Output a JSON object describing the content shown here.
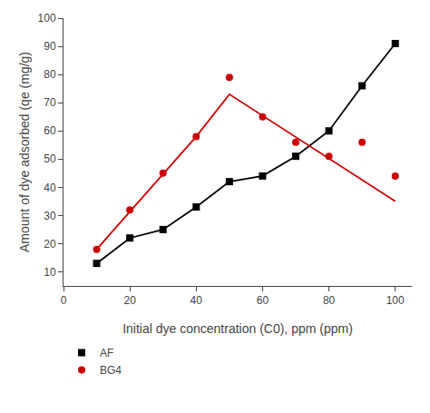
{
  "chart_data": {
    "type": "line",
    "xlabel": "Initial dye concentration (C0), ppm (ppm)",
    "ylabel": "Amount of dye adsorbed (qe (mg/g)",
    "xlim": [
      0,
      105
    ],
    "ylim": [
      5,
      100
    ],
    "xticks": [
      0,
      20,
      40,
      60,
      80,
      100
    ],
    "yticks": [
      10,
      20,
      30,
      40,
      50,
      60,
      70,
      80,
      90,
      100
    ],
    "grid": false,
    "legend": "bottom left",
    "series": [
      {
        "type": "line",
        "color": "#000000",
        "line_style": "solid",
        "x": [
          10,
          20,
          30,
          40,
          50,
          60,
          70,
          80,
          90,
          100
        ],
        "values": [
          13,
          22,
          25,
          33,
          42,
          44,
          51,
          60,
          76,
          91
        ]
      },
      {
        "type": "line",
        "color": "#cc0000",
        "line_style": "solid",
        "x": [
          10,
          40,
          50,
          100
        ],
        "values": [
          18,
          58,
          73,
          35
        ]
      },
      {
        "name": "AF",
        "type": "scatter",
        "color": "#000000",
        "marker": "square",
        "x": [
          10,
          20,
          30,
          40,
          50,
          60,
          70,
          80,
          90,
          100
        ],
        "values": [
          13,
          22,
          25,
          33,
          42,
          44,
          51,
          60,
          76,
          91
        ]
      },
      {
        "name": "BG4",
        "type": "scatter",
        "color": "#cc0000",
        "marker": "circle",
        "x": [
          10,
          20,
          30,
          40,
          50,
          60,
          70,
          80,
          90,
          100
        ],
        "values": [
          18,
          32,
          45,
          58,
          79,
          65,
          56,
          51,
          56,
          44
        ]
      }
    ]
  }
}
